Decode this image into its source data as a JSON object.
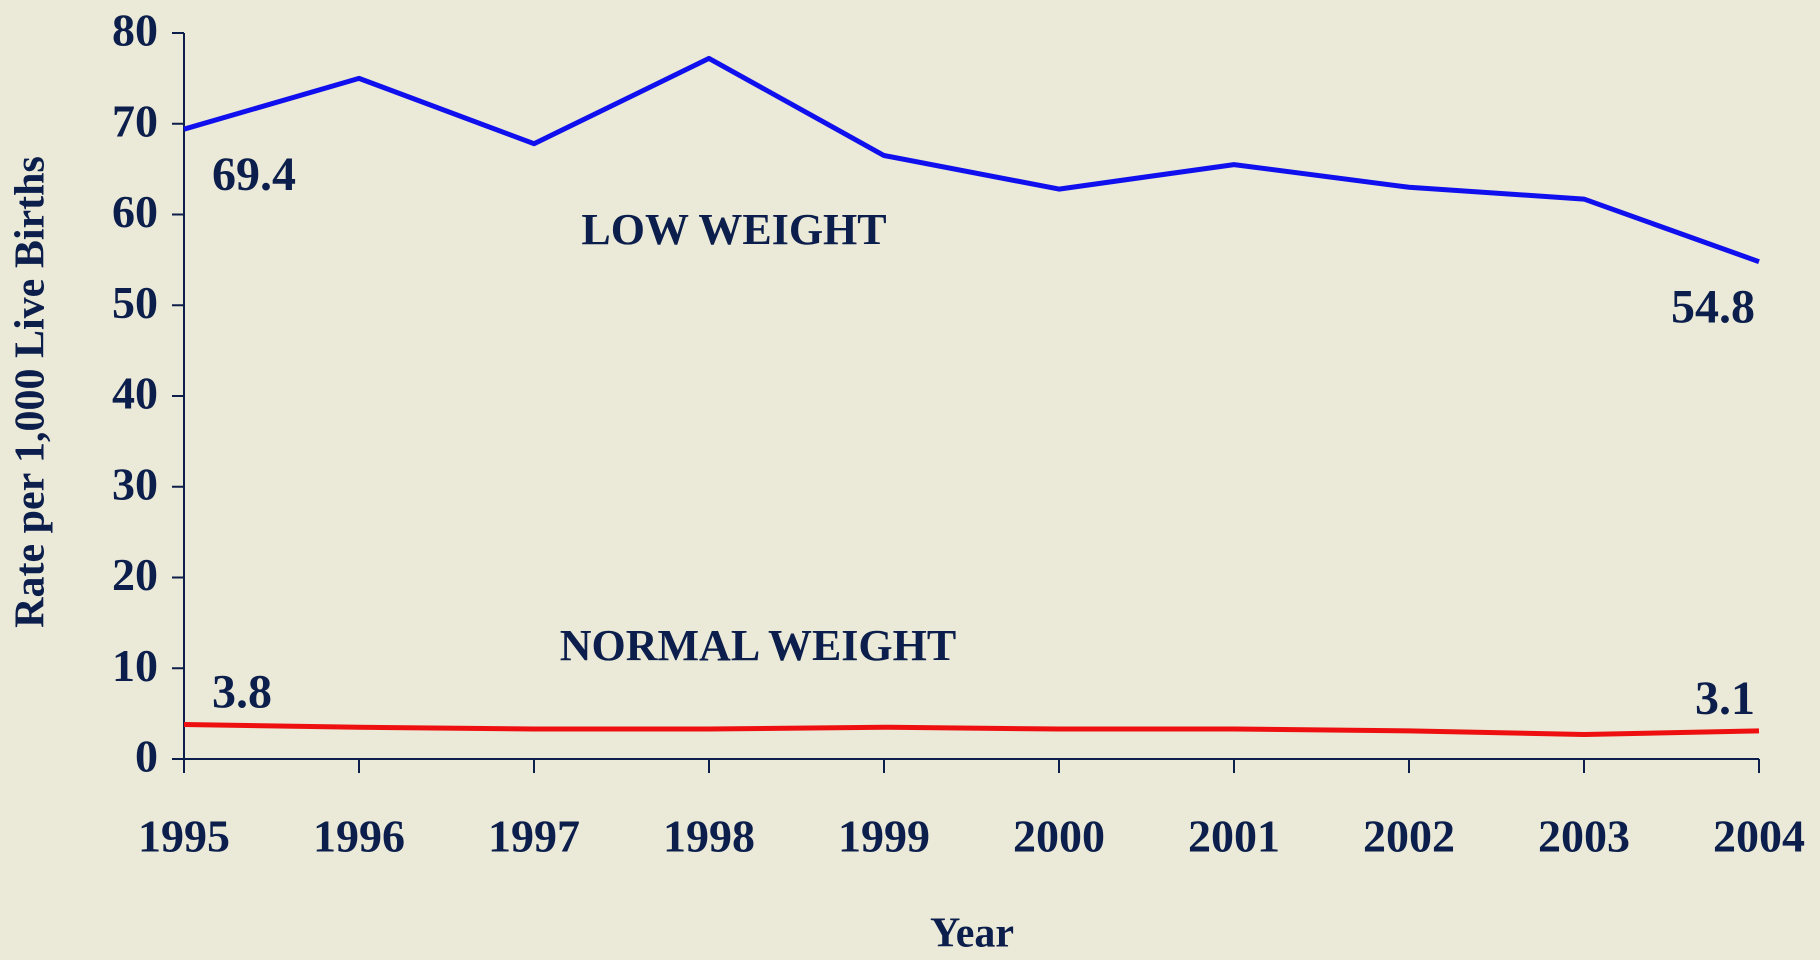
{
  "chart_data": {
    "type": "line",
    "categories": [
      "1995",
      "1996",
      "1997",
      "1998",
      "1999",
      "2000",
      "2001",
      "2002",
      "2003",
      "2004"
    ],
    "series": [
      {
        "name": "LOW WEIGHT",
        "color": "#1010ee",
        "values": [
          69.4,
          75.0,
          67.8,
          77.2,
          66.5,
          62.8,
          65.5,
          63.0,
          61.7,
          54.8
        ]
      },
      {
        "name": "NORMAL WEIGHT",
        "color": "#ee1010",
        "values": [
          3.8,
          3.5,
          3.3,
          3.3,
          3.5,
          3.3,
          3.3,
          3.1,
          2.7,
          3.1
        ]
      }
    ],
    "xlabel": "Year",
    "ylabel": "Rate per 1,000 Live Births",
    "ylim": [
      0,
      80
    ],
    "yticks": [
      0,
      10,
      20,
      30,
      40,
      50,
      60,
      70,
      80
    ],
    "grid": false
  }
}
